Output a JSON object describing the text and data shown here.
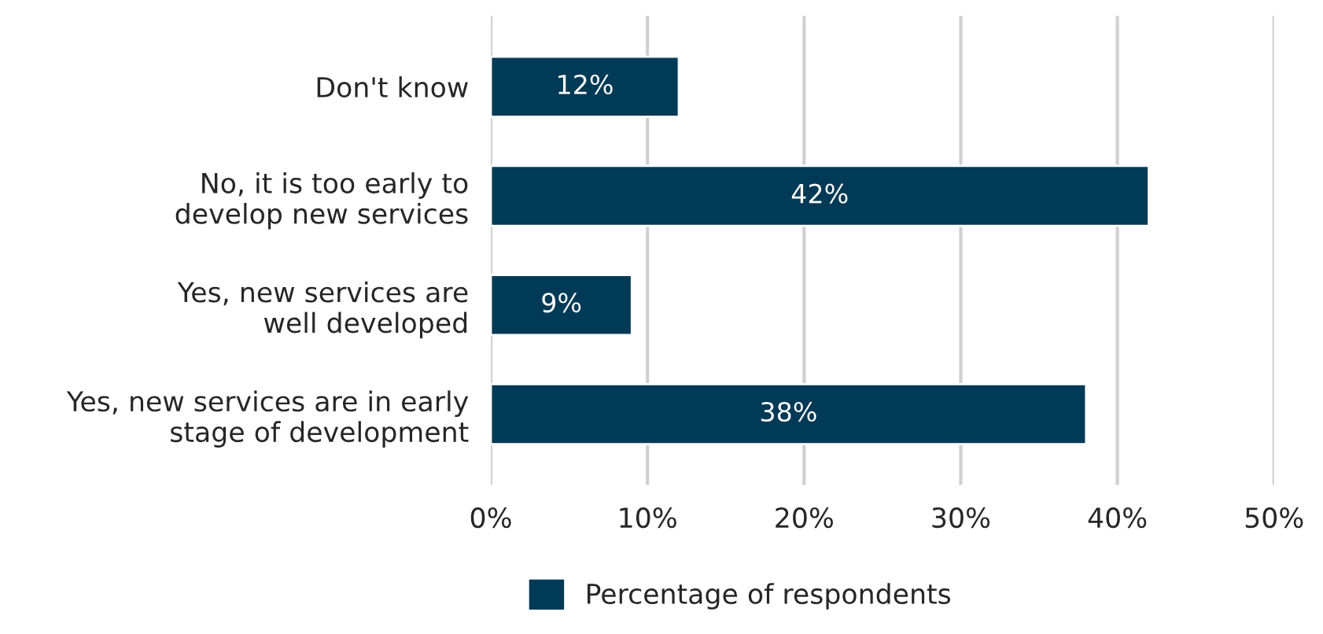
{
  "chart_data": {
    "type": "bar",
    "orientation": "horizontal",
    "categories": [
      "Don't know",
      "No, it is too early to\ndevelop new services",
      "Yes, new services are\nwell developed",
      "Yes, new services are in early\nstage of development"
    ],
    "series": [
      {
        "name": "Percentage of respondents",
        "color": "#003a56",
        "values": [
          12,
          42,
          9,
          38
        ]
      }
    ],
    "value_labels": [
      "12%",
      "42%",
      "9%",
      "38%"
    ],
    "xlim": [
      0,
      50
    ],
    "xticks": [
      {
        "value": 0,
        "label": "0%"
      },
      {
        "value": 10,
        "label": "10%"
      },
      {
        "value": 20,
        "label": "20%"
      },
      {
        "value": 30,
        "label": "30%"
      },
      {
        "value": 40,
        "label": "40%"
      },
      {
        "value": 50,
        "label": "50%"
      }
    ],
    "grid": "x",
    "legend": "bottom"
  }
}
